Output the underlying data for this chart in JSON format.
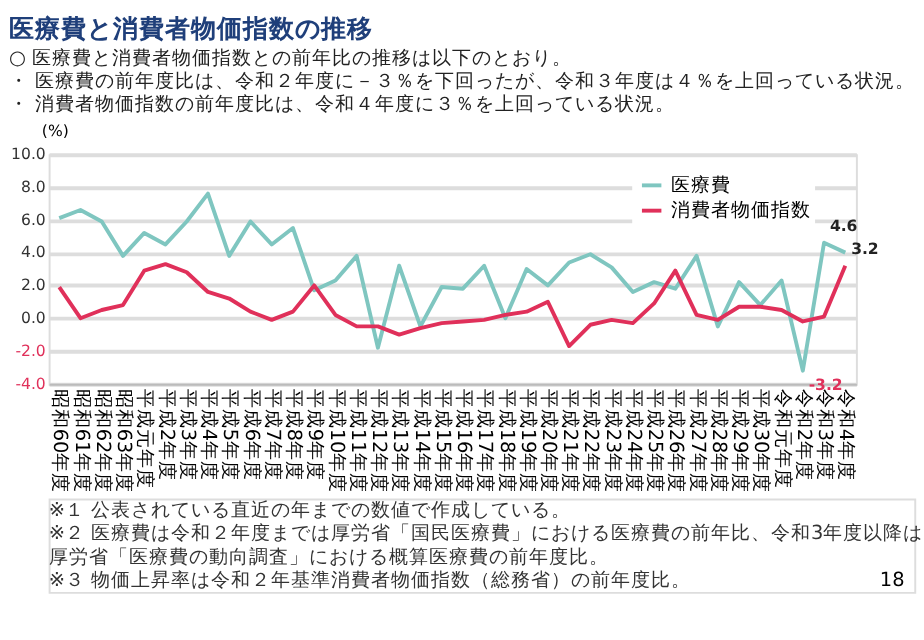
{
  "chart_data": {
    "type": "line",
    "title": "医療費と消費者物価指数の推移",
    "subtitle": "○ 医療費と消費者物価指数との前年比の推移は以下のとおり。",
    "ylabel": "(%)",
    "categories": [
      "昭和60年度",
      "昭和61年度",
      "昭和62年度",
      "昭和63年度",
      "平成元年度",
      "平成2年度",
      "平成3年度",
      "平成4年度",
      "平成5年度",
      "平成6年度",
      "平成7年度",
      "平成8年度",
      "平成9年度",
      "平成10年度",
      "平成11年度",
      "平成12年度",
      "平成13年度",
      "平成14年度",
      "平成15年度",
      "平成16年度",
      "平成17年度",
      "平成18年度",
      "平成19年度",
      "平成20年度",
      "平成21年度",
      "平成22年度",
      "平成23年度",
      "平成24年度",
      "平成25年度",
      "平成26年度",
      "平成27年度",
      "平成28年度",
      "平成29年度",
      "平成30年度",
      "令和元年度",
      "令和2年度",
      "令和3年度",
      "令和4年度"
    ],
    "series": [
      {
        "name": "医療費",
        "color": "#7fc6c0",
        "values": [
          6.1,
          6.6,
          5.9,
          3.8,
          5.2,
          4.5,
          5.9,
          7.6,
          3.8,
          5.9,
          4.5,
          5.5,
          1.7,
          2.3,
          3.8,
          -1.8,
          3.2,
          -0.5,
          1.9,
          1.8,
          3.2,
          0.0,
          3.0,
          2.0,
          3.4,
          3.9,
          3.1,
          1.6,
          2.2,
          1.8,
          3.8,
          -0.5,
          2.2,
          0.8,
          2.3,
          -3.2,
          4.6,
          4.0
        ]
      },
      {
        "name": "消費者物価指数",
        "color": "#e0305a",
        "values": [
          1.9,
          0.0,
          0.5,
          0.8,
          2.9,
          3.3,
          2.8,
          1.6,
          1.2,
          0.4,
          -0.1,
          0.4,
          2.0,
          0.2,
          -0.5,
          -0.5,
          -1.0,
          -0.6,
          -0.3,
          -0.2,
          -0.1,
          0.2,
          0.4,
          1.0,
          -1.7,
          -0.4,
          -0.1,
          -0.3,
          0.9,
          2.9,
          0.2,
          -0.1,
          0.7,
          0.7,
          0.5,
          -0.2,
          0.1,
          3.2
        ]
      }
    ],
    "ylim": [
      -4,
      10
    ],
    "yticks": [
      {
        "value": -4,
        "label": "-4.0"
      },
      {
        "value": -2,
        "label": "-2.0"
      },
      {
        "value": 0,
        "label": "0.0"
      },
      {
        "value": 2,
        "label": "2.0"
      },
      {
        "value": 4,
        "label": "4.0"
      },
      {
        "value": 6,
        "label": "6.0"
      },
      {
        "value": 8,
        "label": "8.0"
      },
      {
        "value": 10,
        "label": "10.0"
      }
    ],
    "grid": "y",
    "legend": "top right",
    "marker": "none",
    "line_style": "solid",
    "annotations": [
      "・ 医療費の前年度比は、令和２年度に－３％を下回ったが、令和３年度は４％を上回っている状況。",
      "・ 消費者物価指数の前年度比は、令和４年度に３％を上回っている状況。",
      {
        "text": "4.6",
        "x": "令和3年度",
        "y": 4.6
      },
      {
        "text": "-3.2",
        "x": "令和2年度",
        "y": -3.2
      },
      {
        "text": "3.2",
        "x": "令和4年度",
        "y": 3.2
      },
      "※１ 公表されている直近の年までの数値で作成している。",
      "※２ 医療費は令和２年度までは厚労省「国民医療費」における医療費の前年比、令和3年度以降は厚労省「医療費の動向調査」における概算医療費の前年度比。",
      "※３ 物価上昇率は令和２年基準消費者物価指数（総務省）の前年度比。",
      "18"
    ]
  }
}
